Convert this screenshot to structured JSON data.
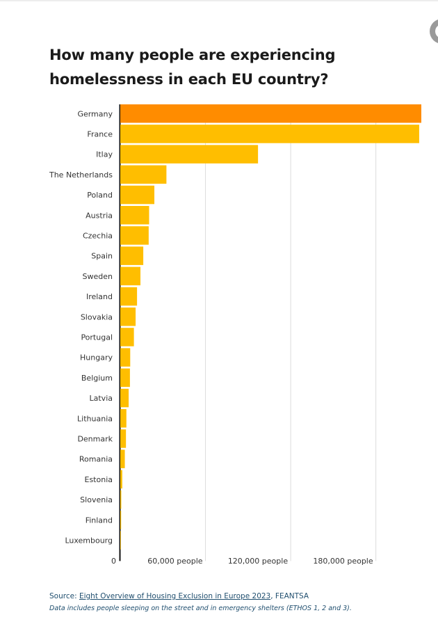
{
  "chart_data": {
    "type": "bar",
    "orientation": "horizontal",
    "title": "How many people are experiencing homelessness in each EU country?",
    "categories": [
      "Germany",
      "France",
      "Itlay",
      "The Netherlands",
      "Poland",
      "Austria",
      "Czechia",
      "Spain",
      "Sweden",
      "Ireland",
      "Slovakia",
      "Portugal",
      "Hungary",
      "Belgium",
      "Latvia",
      "Lithuania",
      "Denmark",
      "Romania",
      "Estonia",
      "Slovenia",
      "Finland",
      "Luxembourg"
    ],
    "values": [
      212000,
      210500,
      97000,
      32500,
      24000,
      20300,
      20000,
      16200,
      14200,
      11800,
      10800,
      9600,
      7000,
      6800,
      5900,
      4300,
      4000,
      3200,
      1400,
      700,
      600,
      200
    ],
    "highlight": "Germany",
    "colors": {
      "highlight": "#ff8c00",
      "default": "#ffbe00",
      "grid": "#dcdcdc",
      "axis": "#111111"
    },
    "xlim": [
      0,
      212000
    ],
    "xticks": [
      0,
      60000,
      120000,
      180000
    ],
    "xtick_labels": [
      "0",
      "60,000 people",
      "120,000 people",
      "180,000 people"
    ],
    "xlabel": "",
    "ylabel": "",
    "grid": true
  },
  "source": {
    "prefix": "Source: ",
    "link_text": "Eight Overview of Housing Exclusion in Europe 2023",
    "suffix": ", FEANTSA"
  },
  "note": "Data includes people sleeping on the street and in emergency shelters (ETHOS 1, 2 and 3)."
}
